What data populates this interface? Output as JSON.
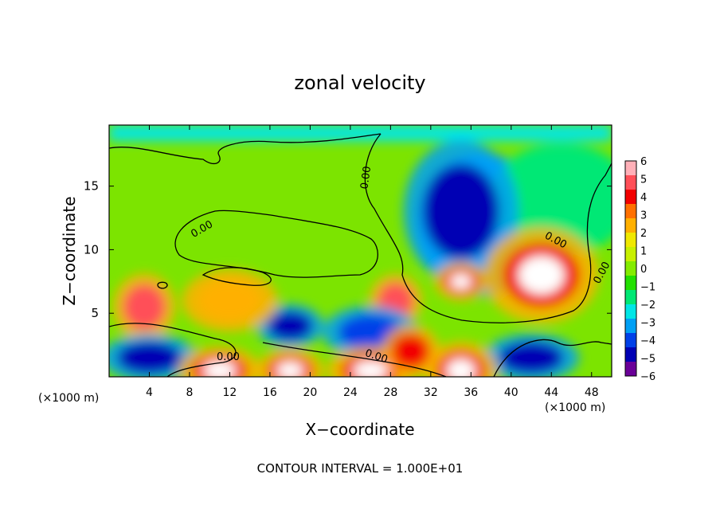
{
  "chart_data": {
    "type": "heatmap",
    "title": "zonal velocity",
    "xlabel": "X−coordinate",
    "ylabel": "Z−coordinate",
    "x_unit_left": "(×1000 m)",
    "x_unit_right": "(×1000 m)",
    "footer": "CONTOUR INTERVAL = 1.000E+01",
    "xlim": [
      0,
      50
    ],
    "ylim": [
      0,
      19.8
    ],
    "x_ticks": [
      4,
      8,
      12,
      16,
      20,
      24,
      28,
      32,
      36,
      40,
      44,
      48
    ],
    "y_ticks": [
      5,
      10,
      15
    ],
    "contour_label": "0.00",
    "colorbar": {
      "ticks": [
        "6",
        "5",
        "4",
        "3",
        "2",
        "1",
        "0",
        "−1",
        "−2",
        "−3",
        "−4",
        "−5",
        "−6"
      ],
      "colors": [
        "#ffb0b8",
        "#ff4f58",
        "#f20000",
        "#ff7000",
        "#ffb000",
        "#f0e800",
        "#c8f000",
        "#84ec00",
        "#22e000",
        "#00e874",
        "#00e6e6",
        "#00a0f5",
        "#0040e8",
        "#0000b4",
        "#6a0098"
      ]
    },
    "features": [
      {
        "x": 35,
        "z": 13,
        "value": -5
      },
      {
        "x": 35,
        "z": 7.5,
        "value": 6
      },
      {
        "x": 43,
        "z": 8,
        "value": 6
      },
      {
        "x": 3.5,
        "z": 5.5,
        "value": 5
      },
      {
        "x": 28.5,
        "z": 6,
        "value": 5
      },
      {
        "x": 18,
        "z": 4,
        "value": -5
      },
      {
        "x": 26,
        "z": 3.5,
        "value": -4
      },
      {
        "x": 4,
        "z": 1.5,
        "value": -5
      },
      {
        "x": 42,
        "z": 1.5,
        "value": -5
      },
      {
        "x": 11,
        "z": 0.5,
        "value": 6
      },
      {
        "x": 18,
        "z": 0.5,
        "value": 6
      },
      {
        "x": 26,
        "z": 0.5,
        "value": 6
      },
      {
        "x": 35,
        "z": 0.5,
        "value": 6
      },
      {
        "x": 12,
        "z": 6,
        "value": 3
      },
      {
        "x": 30,
        "z": 2,
        "value": 4
      }
    ]
  }
}
